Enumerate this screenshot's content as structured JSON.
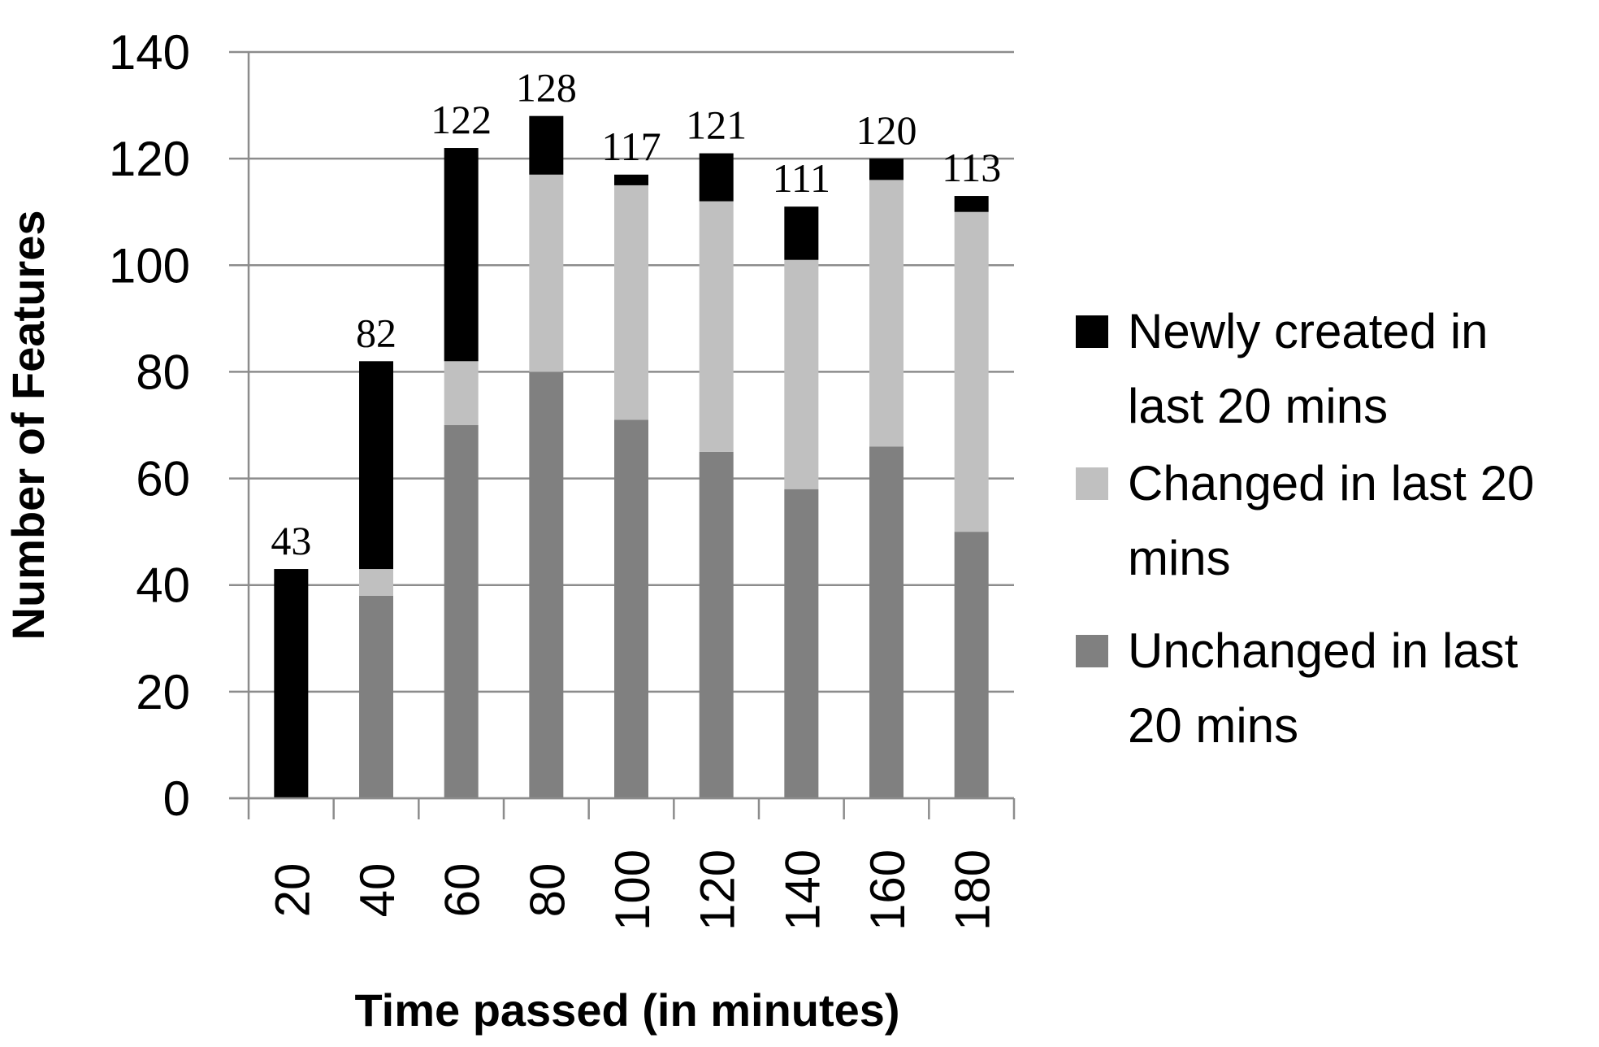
{
  "chart_data": {
    "type": "bar",
    "stacked": true,
    "title": "",
    "xlabel": "Time passed (in minutes)",
    "ylabel": "Number of Features",
    "categories": [
      "20",
      "40",
      "60",
      "80",
      "100",
      "120",
      "140",
      "160",
      "180"
    ],
    "totals": [
      43,
      82,
      122,
      128,
      117,
      121,
      111,
      120,
      113
    ],
    "total_labels": [
      "43",
      "82",
      "122",
      "128",
      "117",
      "121",
      "111",
      "120",
      "113"
    ],
    "series": [
      {
        "name": "Unchanged in last 20 mins",
        "values": [
          0,
          38,
          70,
          80,
          71,
          65,
          58,
          66,
          50
        ],
        "color": "#808080"
      },
      {
        "name": "Changed in last 20 mins",
        "values": [
          0,
          5,
          12,
          37,
          44,
          47,
          43,
          50,
          60
        ],
        "color": "#c0c0c0"
      },
      {
        "name": "Newly created in last 20 mins",
        "values": [
          43,
          39,
          40,
          11,
          2,
          9,
          10,
          4,
          3
        ],
        "color": "#000000"
      }
    ],
    "ylim": [
      0,
      140
    ],
    "yticks": [
      "0",
      "20",
      "40",
      "60",
      "80",
      "100",
      "120",
      "140"
    ],
    "grid": true,
    "legend_position": "right",
    "legend": {
      "entries": [
        {
          "series": "Newly created in last 20 mins",
          "lines": [
            "Newly created in",
            "last 20 mins"
          ]
        },
        {
          "series": "Changed in last 20 mins",
          "lines": [
            "Changed in last 20",
            "mins"
          ]
        },
        {
          "series": "Unchanged in last 20 mins",
          "lines": [
            "Unchanged in last",
            "20 mins"
          ]
        }
      ]
    }
  }
}
